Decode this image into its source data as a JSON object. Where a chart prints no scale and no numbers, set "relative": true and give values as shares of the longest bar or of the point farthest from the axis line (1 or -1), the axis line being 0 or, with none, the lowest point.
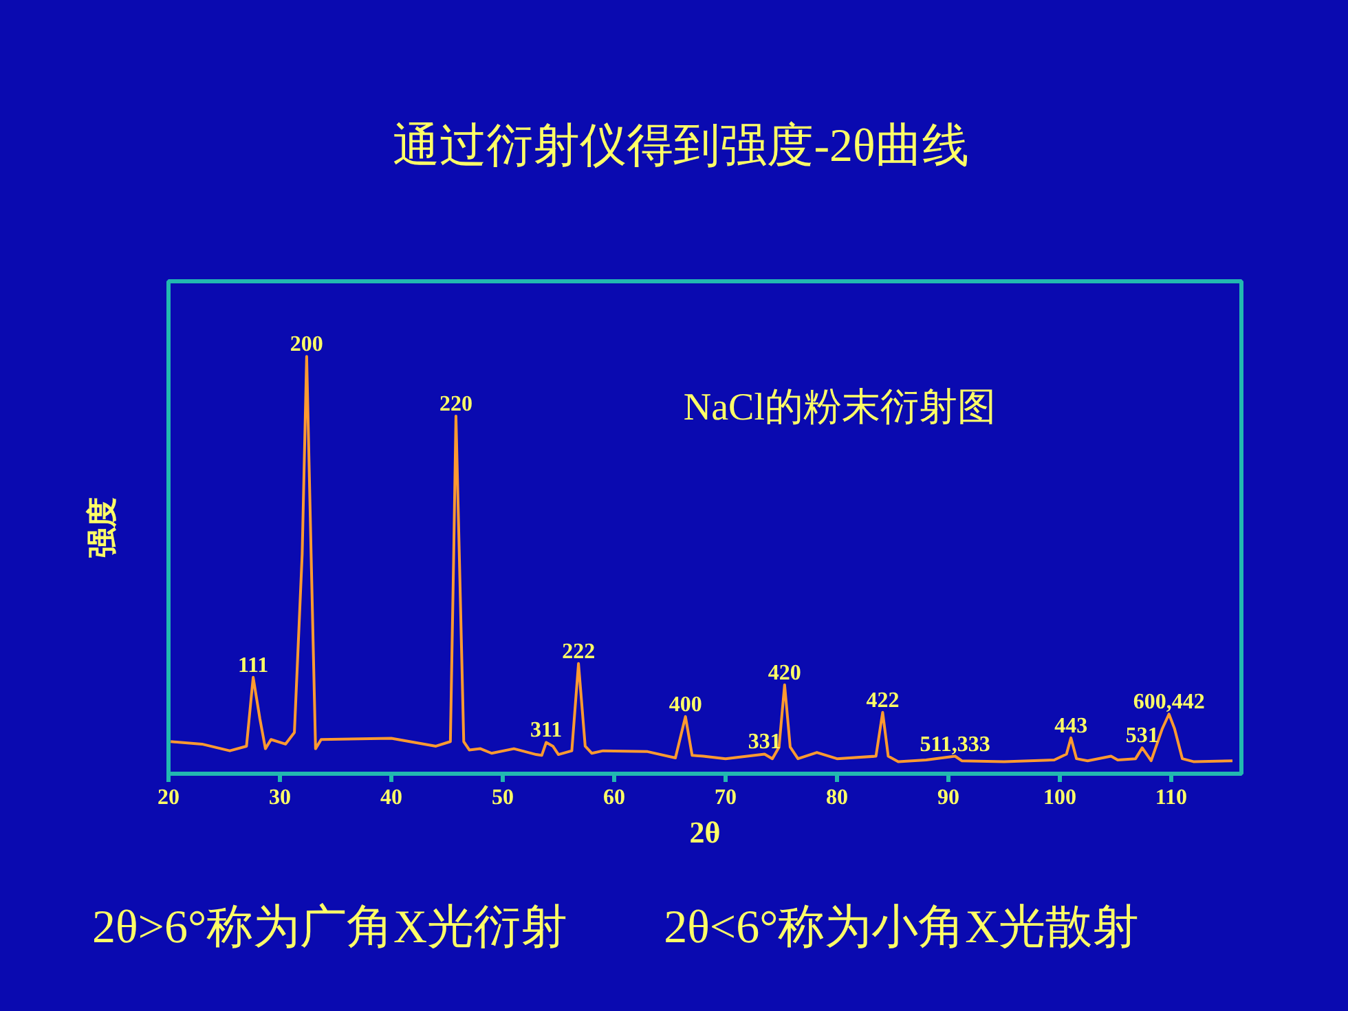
{
  "chart_data": {
    "type": "line",
    "title": "通过衍射仪得到强度-2θ曲线",
    "xlabel": "2θ",
    "ylabel": "强度",
    "relative": true,
    "xlim": [
      20,
      116.3
    ],
    "xticks": [
      20,
      30,
      40,
      50,
      60,
      70,
      80,
      90,
      100,
      110
    ],
    "grid": false,
    "series": [
      {
        "color": "#ff9a30",
        "x": [
          20.2,
          23,
          25.5,
          27.0,
          27.6,
          28.2,
          28.7,
          29.2,
          30.5,
          31.3,
          32.0,
          32.4,
          32.8,
          33.2,
          33.7,
          40,
          44,
          45.3,
          45.6,
          45.8,
          46.1,
          46.5,
          47,
          48,
          49,
          51,
          53,
          53.5,
          53.9,
          54.5,
          55,
          56.2,
          56.8,
          57.4,
          58,
          59,
          63,
          65.5,
          66.4,
          67,
          68,
          70,
          73.5,
          74.2,
          74.8,
          75.3,
          75.8,
          76.5,
          78.2,
          80,
          83.5,
          84.1,
          84.6,
          85.5,
          88,
          90.6,
          91.2,
          95,
          99.5,
          100.6,
          101.0,
          101.5,
          102.5,
          104.6,
          105.2,
          106.8,
          107.4,
          108.2,
          109.2,
          109.8,
          110.3,
          111,
          112,
          115.5
        ],
        "values": [
          0.077,
          0.071,
          0.055,
          0.066,
          0.231,
          0.132,
          0.06,
          0.082,
          0.071,
          0.099,
          0.527,
          1.0,
          0.527,
          0.06,
          0.082,
          0.085,
          0.066,
          0.077,
          0.527,
          0.857,
          0.527,
          0.077,
          0.057,
          0.06,
          0.049,
          0.06,
          0.046,
          0.044,
          0.075,
          0.066,
          0.046,
          0.055,
          0.264,
          0.066,
          0.049,
          0.055,
          0.053,
          0.038,
          0.137,
          0.044,
          0.042,
          0.036,
          0.047,
          0.036,
          0.064,
          0.213,
          0.064,
          0.036,
          0.051,
          0.036,
          0.042,
          0.147,
          0.042,
          0.029,
          0.033,
          0.042,
          0.031,
          0.029,
          0.033,
          0.047,
          0.086,
          0.036,
          0.031,
          0.042,
          0.033,
          0.036,
          0.062,
          0.031,
          0.108,
          0.143,
          0.108,
          0.036,
          0.029,
          0.031
        ]
      }
    ],
    "annotations": [
      "NaCl的粉末衍射图",
      "2θ>6°称为广角X光衍射",
      "2θ<6°称为小角X光散射",
      {
        "text": "111",
        "x": 27.6,
        "y": 0.231
      },
      {
        "text": "200",
        "x": 32.4,
        "y": 1.0
      },
      {
        "text": "220",
        "x": 45.8,
        "y": 0.857
      },
      {
        "text": "311",
        "x": 53.9,
        "y": 0.075
      },
      {
        "text": "222",
        "x": 56.8,
        "y": 0.264
      },
      {
        "text": "400",
        "x": 66.4,
        "y": 0.137
      },
      {
        "text": "331",
        "x": 73.5,
        "y": 0.047
      },
      {
        "text": "420",
        "x": 75.3,
        "y": 0.213
      },
      {
        "text": "422",
        "x": 84.1,
        "y": 0.147
      },
      {
        "text": "511,333",
        "x": 90.6,
        "y": 0.042
      },
      {
        "text": "443",
        "x": 101.0,
        "y": 0.086
      },
      {
        "text": "531",
        "x": 107.4,
        "y": 0.062
      },
      {
        "text": "600,442",
        "x": 109.8,
        "y": 0.143
      }
    ]
  }
}
